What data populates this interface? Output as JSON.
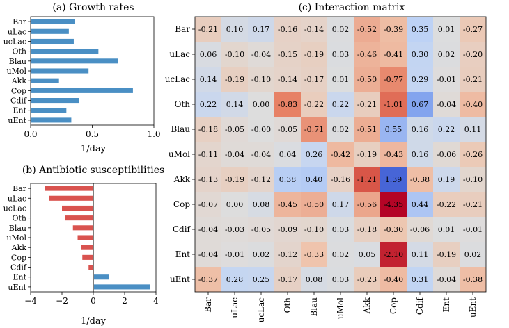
{
  "chart_data": [
    {
      "type": "bar",
      "orientation": "horizontal",
      "title": "(a) Growth rates",
      "xlabel": "1/day",
      "ylabel": "",
      "xlim": [
        0,
        1
      ],
      "xticks": [
        0,
        0.5,
        1
      ],
      "xtick_labels": [
        "0.0",
        "0.5",
        "1.0"
      ],
      "color": "#4a8fc4",
      "categories": [
        "Bar",
        "uLac",
        "ucLac",
        "Oth",
        "Blau",
        "uMol",
        "Akk",
        "Cop",
        "Cdif",
        "Ent",
        "uEnt"
      ],
      "values": [
        0.36,
        0.31,
        0.35,
        0.55,
        0.71,
        0.47,
        0.23,
        0.83,
        0.39,
        0.29,
        0.33
      ]
    },
    {
      "type": "bar",
      "orientation": "horizontal",
      "title": "(b) Antibiotic susceptibilities",
      "xlabel": "1/day",
      "ylabel": "",
      "xlim": [
        -4,
        4
      ],
      "xticks": [
        -4,
        -2,
        0,
        2,
        4
      ],
      "xtick_labels": [
        "−4",
        "−2",
        "0",
        "2",
        "4"
      ],
      "negative_color": "#d9534f",
      "positive_color": "#4a8fc4",
      "categories": [
        "Bar",
        "uLac",
        "ucLac",
        "Oth",
        "Blau",
        "uMol",
        "Akk",
        "Cop",
        "Cdif",
        "Ent",
        "uEnt"
      ],
      "values": [
        -3.1,
        -2.8,
        -2.0,
        -1.8,
        -1.3,
        -1.0,
        -0.8,
        -0.7,
        -0.3,
        1.0,
        3.6
      ]
    },
    {
      "type": "heatmap",
      "title": "(c) Interaction matrix",
      "rows": [
        "Bar",
        "uLac",
        "ucLac",
        "Oth",
        "Blau",
        "uMol",
        "Akk",
        "Cop",
        "Cdif",
        "Ent",
        "uEnt"
      ],
      "columns": [
        "Bar",
        "uLac",
        "ucLac",
        "Oth",
        "Blau",
        "uMol",
        "Akk",
        "Cop",
        "Cdif",
        "Ent",
        "uEnt"
      ],
      "colormap": "coolwarm_reversed",
      "values": [
        [
          "-0.21",
          "0.10",
          "0.17",
          "-0.16",
          "-0.14",
          "0.02",
          "-0.52",
          "-0.39",
          "0.35",
          "0.01",
          "-0.27"
        ],
        [
          "0.06",
          "-0.10",
          "-0.04",
          "-0.15",
          "-0.19",
          "0.03",
          "-0.46",
          "-0.41",
          "0.30",
          "0.02",
          "-0.20"
        ],
        [
          "0.14",
          "-0.19",
          "-0.10",
          "-0.14",
          "-0.17",
          "0.01",
          "-0.50",
          "-0.77",
          "0.29",
          "-0.01",
          "-0.21"
        ],
        [
          "0.22",
          "0.14",
          "0.00",
          "-0.83",
          "-0.22",
          "0.22",
          "-0.21",
          "-1.01",
          "0.67",
          "-0.04",
          "-0.40"
        ],
        [
          "-0.18",
          "-0.05",
          "-0.00",
          "-0.05",
          "-0.71",
          "0.02",
          "-0.51",
          "0.55",
          "0.16",
          "0.22",
          "0.11"
        ],
        [
          "-0.11",
          "-0.04",
          "-0.04",
          "0.04",
          "0.26",
          "-0.42",
          "-0.19",
          "-0.43",
          "0.16",
          "-0.06",
          "-0.26"
        ],
        [
          "-0.13",
          "-0.19",
          "-0.12",
          "0.38",
          "0.40",
          "-0.16",
          "-1.21",
          "1.39",
          "-0.38",
          "0.19",
          "-0.10"
        ],
        [
          "-0.07",
          "0.00",
          "0.08",
          "-0.45",
          "-0.50",
          "0.17",
          "-0.56",
          "-4.35",
          "0.44",
          "-0.22",
          "-0.21"
        ],
        [
          "-0.04",
          "-0.03",
          "-0.05",
          "-0.09",
          "-0.10",
          "0.03",
          "-0.18",
          "-0.30",
          "-0.06",
          "0.01",
          "-0.01"
        ],
        [
          "-0.04",
          "-0.01",
          "0.02",
          "-0.12",
          "-0.33",
          "0.02",
          "0.05",
          "-2.10",
          "0.11",
          "-0.19",
          "0.02"
        ],
        [
          "-0.37",
          "0.28",
          "0.25",
          "-0.17",
          "0.08",
          "0.03",
          "-0.23",
          "-0.40",
          "0.31",
          "-0.04",
          "-0.38"
        ]
      ]
    }
  ]
}
